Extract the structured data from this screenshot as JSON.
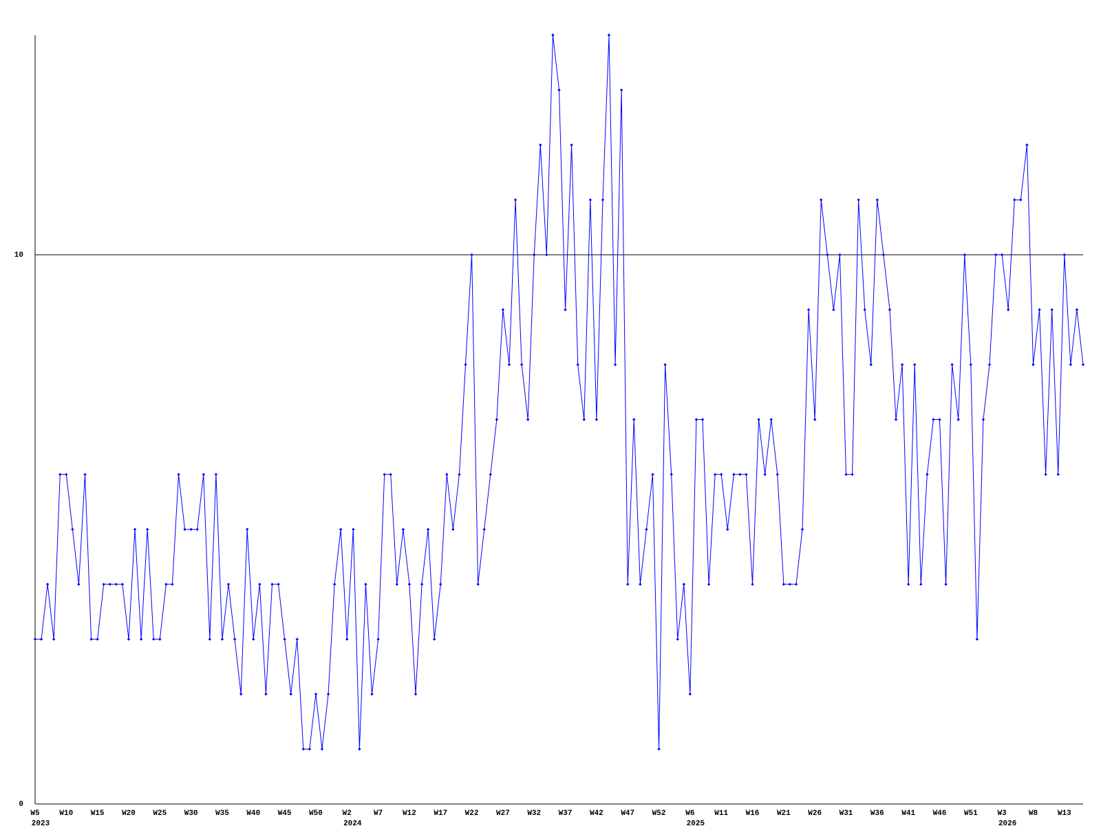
{
  "chart_data": {
    "type": "line",
    "categories": [
      "W5",
      null,
      null,
      null,
      null,
      "W10",
      null,
      null,
      null,
      null,
      "W15",
      null,
      null,
      null,
      null,
      "W20",
      null,
      null,
      null,
      null,
      "W25",
      null,
      null,
      null,
      null,
      "W30",
      null,
      null,
      null,
      null,
      "W35",
      null,
      null,
      null,
      null,
      "W40",
      null,
      null,
      null,
      null,
      "W45",
      null,
      null,
      null,
      null,
      "W50",
      null,
      null,
      null,
      null,
      "W2",
      null,
      null,
      null,
      null,
      "W7",
      null,
      null,
      null,
      null,
      "W12",
      null,
      null,
      null,
      null,
      "W17",
      null,
      null,
      null,
      null,
      "W22",
      null,
      null,
      null,
      null,
      "W27",
      null,
      null,
      null,
      null,
      "W32",
      null,
      null,
      null,
      null,
      "W37",
      null,
      null,
      null,
      null,
      "W42",
      null,
      null,
      null,
      null,
      "W47",
      null,
      null,
      null,
      null,
      "W52",
      null,
      null,
      null,
      null,
      "W6",
      null,
      null,
      null,
      null,
      "W11",
      null,
      null,
      null,
      null,
      "W16",
      null,
      null,
      null,
      null,
      "W21",
      null,
      null,
      null,
      null,
      "W26",
      null,
      null,
      null,
      null,
      "W31",
      null,
      null,
      null,
      null,
      "W36",
      null,
      null,
      null,
      null,
      "W41",
      null,
      null,
      null,
      null,
      "W46",
      null,
      null,
      null,
      null,
      "W51",
      null,
      null,
      null,
      null,
      "W3",
      null,
      null,
      null,
      null,
      "W8",
      null,
      null,
      null,
      null,
      "W13",
      null,
      null,
      null
    ],
    "year_labels": [
      "2023",
      null,
      null,
      null,
      null,
      null,
      null,
      null,
      null,
      null,
      null,
      null,
      null,
      null,
      null,
      null,
      null,
      null,
      null,
      null,
      null,
      null,
      null,
      null,
      null,
      null,
      null,
      null,
      null,
      null,
      null,
      null,
      null,
      null,
      null,
      null,
      null,
      null,
      null,
      null,
      null,
      null,
      null,
      null,
      null,
      null,
      null,
      null,
      null,
      null,
      "2024",
      null,
      null,
      null,
      null,
      null,
      null,
      null,
      null,
      null,
      null,
      null,
      null,
      null,
      null,
      null,
      null,
      null,
      null,
      null,
      null,
      null,
      null,
      null,
      null,
      null,
      null,
      null,
      null,
      null,
      null,
      null,
      null,
      null,
      null,
      null,
      null,
      null,
      null,
      null,
      null,
      null,
      null,
      null,
      null,
      null,
      null,
      null,
      null,
      null,
      null,
      null,
      null,
      null,
      null,
      "2025",
      null,
      null,
      null,
      null,
      null,
      null,
      null,
      null,
      null,
      null,
      null,
      null,
      null,
      null,
      null,
      null,
      null,
      null,
      null,
      null,
      null,
      null,
      null,
      null,
      null,
      null,
      null,
      null,
      null,
      null,
      null,
      null,
      null,
      null,
      null,
      null,
      null,
      null,
      null,
      null,
      null,
      null,
      null,
      null,
      null,
      null,
      null,
      null,
      null,
      "2026",
      null,
      null,
      null,
      null,
      null,
      null,
      null,
      null,
      null,
      null,
      null,
      null,
      null
    ],
    "series": [
      {
        "color": "#0000ff",
        "values": [
          3,
          3,
          4,
          3,
          6,
          6,
          5,
          4,
          6,
          3,
          3,
          4,
          4,
          4,
          4,
          3,
          5,
          3,
          5,
          3,
          3,
          4,
          4,
          6,
          5,
          5,
          5,
          6,
          3,
          6,
          3,
          4,
          3,
          2,
          5,
          3,
          4,
          2,
          4,
          4,
          3,
          2,
          3,
          1,
          1,
          2,
          1,
          2,
          4,
          5,
          3,
          5,
          1,
          4,
          2,
          3,
          6,
          6,
          4,
          5,
          4,
          2,
          4,
          5,
          3,
          4,
          6,
          5,
          6,
          8,
          10,
          4,
          5,
          6,
          7,
          9,
          8,
          11,
          8,
          7,
          10,
          12,
          10,
          14,
          13,
          9,
          12,
          8,
          7,
          11,
          7,
          11,
          14,
          8,
          13,
          4,
          7,
          4,
          5,
          6,
          1,
          8,
          6,
          3,
          4,
          2,
          7,
          7,
          4,
          6,
          6,
          5,
          6,
          6,
          6,
          4,
          7,
          6,
          7,
          6,
          4,
          4,
          4,
          5,
          9,
          7,
          11,
          10,
          9,
          10,
          6,
          6,
          11,
          9,
          8,
          11,
          10,
          9,
          7,
          8,
          4,
          8,
          4,
          6,
          7,
          7,
          4,
          8,
          7,
          10,
          8,
          3,
          7,
          8,
          10,
          10,
          9,
          11,
          11,
          12,
          8,
          9,
          6,
          9,
          6,
          10,
          8,
          9,
          8
        ]
      }
    ],
    "ylim": [
      0,
      14
    ],
    "yticks": [
      0,
      10
    ],
    "grid": true
  }
}
